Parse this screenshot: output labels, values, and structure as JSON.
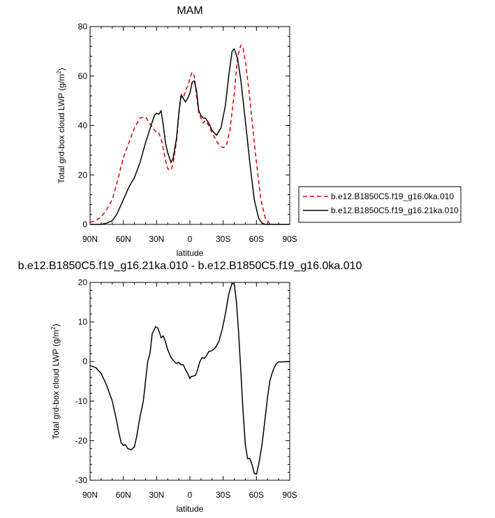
{
  "chart_data": [
    {
      "type": "line",
      "title": "MAM",
      "xlabel": "latitude",
      "ylabel": "Total grd-box cloud LWP (g/m",
      "ylabel_sup": "2",
      "ylabel_tail": ")",
      "xlim": [
        90,
        -90
      ],
      "ylim": [
        0,
        80
      ],
      "xticks": [
        90,
        60,
        30,
        0,
        -30,
        -60,
        -90
      ],
      "xtick_labels": [
        "90N",
        "60N",
        "30N",
        "0",
        "30S",
        "60S",
        "90S"
      ],
      "yticks": [
        0,
        20,
        40,
        60,
        80
      ],
      "ytick_labels": [
        "0",
        "20",
        "40",
        "60",
        "80"
      ],
      "legend_position": "right",
      "series": [
        {
          "name": "b.e12.B1850C5.f19_g16.0ka.010",
          "color": "#dd0000",
          "dash": "dashed",
          "points": [
            [
              90,
              0.8
            ],
            [
              85,
              1.5
            ],
            [
              80,
              3
            ],
            [
              75,
              6
            ],
            [
              70,
              10
            ],
            [
              65,
              18
            ],
            [
              60,
              27
            ],
            [
              55,
              33
            ],
            [
              50,
              39
            ],
            [
              45,
              43
            ],
            [
              40,
              43.5
            ],
            [
              35,
              40
            ],
            [
              30,
              37
            ],
            [
              28,
              37
            ],
            [
              25,
              33
            ],
            [
              22,
              26
            ],
            [
              20,
              22.5
            ],
            [
              17,
              22
            ],
            [
              15,
              25
            ],
            [
              12,
              34
            ],
            [
              10,
              44
            ],
            [
              8,
              53
            ],
            [
              6,
              51
            ],
            [
              4,
              54
            ],
            [
              2,
              56
            ],
            [
              0,
              59
            ],
            [
              -2,
              61.5
            ],
            [
              -4,
              60
            ],
            [
              -6,
              52
            ],
            [
              -8,
              45
            ],
            [
              -10,
              43
            ],
            [
              -12,
              41
            ],
            [
              -14,
              42
            ],
            [
              -17,
              40
            ],
            [
              -20,
              37
            ],
            [
              -25,
              33
            ],
            [
              -28,
              31.5
            ],
            [
              -30,
              31
            ],
            [
              -33,
              32
            ],
            [
              -36,
              38
            ],
            [
              -40,
              53
            ],
            [
              -43,
              68
            ],
            [
              -46,
              72.5
            ],
            [
              -48,
              71
            ],
            [
              -50,
              66
            ],
            [
              -53,
              55
            ],
            [
              -56,
              42
            ],
            [
              -60,
              25
            ],
            [
              -64,
              10
            ],
            [
              -68,
              2.5
            ],
            [
              -72,
              0.3
            ],
            [
              -75,
              0
            ]
          ]
        },
        {
          "name": "b.e12.B1850C5.f19_g16.21ka.010",
          "color": "#000000",
          "dash": "solid",
          "points": [
            [
              90,
              0
            ],
            [
              80,
              0
            ],
            [
              75,
              0.5
            ],
            [
              70,
              1.5
            ],
            [
              66,
              4
            ],
            [
              62,
              8
            ],
            [
              58,
              12
            ],
            [
              55,
              15
            ],
            [
              50,
              19
            ],
            [
              45,
              25
            ],
            [
              40,
              33
            ],
            [
              35,
              40
            ],
            [
              32,
              44
            ],
            [
              30,
              45
            ],
            [
              28,
              44.5
            ],
            [
              26,
              46
            ],
            [
              24,
              40
            ],
            [
              22,
              33
            ],
            [
              20,
              29
            ],
            [
              17,
              25
            ],
            [
              15,
              27
            ],
            [
              12,
              35
            ],
            [
              10,
              45
            ],
            [
              8,
              52
            ],
            [
              6,
              51
            ],
            [
              4,
              49.5
            ],
            [
              2,
              51
            ],
            [
              0,
              53
            ],
            [
              -2,
              57.5
            ],
            [
              -4,
              58
            ],
            [
              -6,
              54
            ],
            [
              -8,
              46
            ],
            [
              -10,
              44
            ],
            [
              -12,
              43
            ],
            [
              -14,
              43
            ],
            [
              -17,
              41
            ],
            [
              -20,
              38
            ],
            [
              -24,
              36
            ],
            [
              -28,
              39
            ],
            [
              -32,
              48
            ],
            [
              -35,
              60
            ],
            [
              -38,
              70
            ],
            [
              -40,
              71
            ],
            [
              -43,
              67
            ],
            [
              -46,
              58
            ],
            [
              -50,
              42
            ],
            [
              -54,
              25
            ],
            [
              -58,
              10
            ],
            [
              -62,
              2.5
            ],
            [
              -65,
              0.5
            ],
            [
              -68,
              0
            ],
            [
              -90,
              0
            ]
          ]
        }
      ]
    },
    {
      "type": "line",
      "title": "b.e12.B1850C5.f19_g16.21ka.010 - b.e12.B1850C5.f19_g16.0ka.010",
      "xlabel": "latitude",
      "ylabel": "Total grd-box cloud LWP (g/m",
      "ylabel_sup": "2",
      "ylabel_tail": ")",
      "xlim": [
        90,
        -90
      ],
      "ylim": [
        -30,
        20
      ],
      "xticks": [
        90,
        60,
        30,
        0,
        -30,
        -60,
        -90
      ],
      "xtick_labels": [
        "90N",
        "60N",
        "30N",
        "0",
        "30S",
        "60S",
        "90S"
      ],
      "yticks": [
        -30,
        -20,
        -10,
        0,
        10,
        20
      ],
      "ytick_labels": [
        "-30",
        "-20",
        "-10",
        "0",
        "10",
        "20"
      ],
      "series": [
        {
          "color": "#000000",
          "dash": "solid",
          "points": [
            [
              90,
              -1
            ],
            [
              85,
              -1.5
            ],
            [
              80,
              -3
            ],
            [
              75,
              -6
            ],
            [
              70,
              -10
            ],
            [
              66,
              -15
            ],
            [
              64,
              -18
            ],
            [
              62,
              -20.5
            ],
            [
              60,
              -21.2
            ],
            [
              58,
              -21
            ],
            [
              56,
              -22
            ],
            [
              53,
              -22.3
            ],
            [
              50,
              -21.5
            ],
            [
              48,
              -19
            ],
            [
              45,
              -14
            ],
            [
              42,
              -10
            ],
            [
              40,
              -5
            ],
            [
              38,
              0
            ],
            [
              36,
              2
            ],
            [
              34,
              7
            ],
            [
              31,
              8.8
            ],
            [
              29,
              8.5
            ],
            [
              27,
              7
            ],
            [
              26,
              6
            ],
            [
              24,
              6.5
            ],
            [
              22,
              5
            ],
            [
              20,
              3
            ],
            [
              17,
              1
            ],
            [
              14,
              0
            ],
            [
              12,
              -0.5
            ],
            [
              10,
              -0.2
            ],
            [
              8,
              -0.8
            ],
            [
              6,
              -0.8
            ],
            [
              4,
              -2
            ],
            [
              2,
              -3
            ],
            [
              0,
              -4.3
            ],
            [
              -1,
              -3.8
            ],
            [
              -3,
              -3.7
            ],
            [
              -5,
              -3.5
            ],
            [
              -7,
              -2
            ],
            [
              -9,
              0
            ],
            [
              -11,
              1
            ],
            [
              -13,
              0.8
            ],
            [
              -15,
              1.5
            ],
            [
              -17,
              2.5
            ],
            [
              -20,
              2.8
            ],
            [
              -23,
              3.5
            ],
            [
              -26,
              5
            ],
            [
              -29,
              8
            ],
            [
              -32,
              12
            ],
            [
              -35,
              17
            ],
            [
              -38,
              19.8
            ],
            [
              -40,
              19.5
            ],
            [
              -42,
              15
            ],
            [
              -44,
              7
            ],
            [
              -46,
              -3
            ],
            [
              -48,
              -13
            ],
            [
              -50,
              -21
            ],
            [
              -52,
              -24.5
            ],
            [
              -54,
              -24.5
            ],
            [
              -56,
              -26
            ],
            [
              -58,
              -28.3
            ],
            [
              -60,
              -28.5
            ],
            [
              -62,
              -26
            ],
            [
              -65,
              -21
            ],
            [
              -68,
              -14
            ],
            [
              -70,
              -9
            ],
            [
              -72,
              -5
            ],
            [
              -74,
              -3
            ],
            [
              -76,
              -1.5
            ],
            [
              -78,
              -0.5
            ],
            [
              -80,
              -0.1
            ],
            [
              -90,
              0
            ]
          ]
        }
      ]
    }
  ]
}
